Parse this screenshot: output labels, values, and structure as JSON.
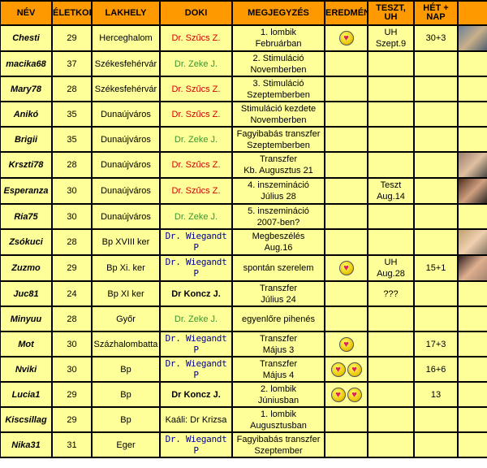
{
  "headers": [
    "NÉV",
    "ÉLETKOR",
    "LAKHELY",
    "DOKI",
    "MEGJEGYZÉS",
    "EREDMÉNY",
    "TESZT, UH",
    "HÉT + NAP",
    ""
  ],
  "colors": {
    "header": "#ff9900",
    "cell": "#ffff99",
    "doc_szucs": "#cc0000",
    "doc_zeke": "#339933",
    "doc_wiegandt": "#000099"
  },
  "rows": [
    {
      "name": "Chesti",
      "age": "29",
      "city": "Herceghalom",
      "doctor": "Dr. Szűcs Z.",
      "doc_style": "red",
      "note1": "1. lombik",
      "note2": "Februárban",
      "hearts": 1,
      "test1": "UH",
      "test2": "Szept.9",
      "week": "30+3",
      "photo": true
    },
    {
      "name": "macika68",
      "age": "37",
      "city": "Székesfehérvár",
      "doctor": "Dr. Zeke J.",
      "doc_style": "green",
      "note1": "2. Stimuláció",
      "note2": "Novemberben",
      "hearts": 0,
      "test1": "",
      "test2": "",
      "week": "",
      "photo": false
    },
    {
      "name": "Mary78",
      "age": "28",
      "city": "Székesfehérvár",
      "doctor": "Dr. Szűcs Z.",
      "doc_style": "red",
      "note1": "3. Stimuláció",
      "note2": "Szeptemberben",
      "hearts": 0,
      "test1": "",
      "test2": "",
      "week": "",
      "photo": false
    },
    {
      "name": "Anikó",
      "age": "35",
      "city": "Dunaújváros",
      "doctor": "Dr. Szűcs Z.",
      "doc_style": "red",
      "note1": "Stimuláció kezdete",
      "note2": "Novemberben",
      "hearts": 0,
      "test1": "",
      "test2": "",
      "week": "",
      "photo": false
    },
    {
      "name": "Brigii",
      "age": "35",
      "city": "Dunaújváros",
      "doctor": "Dr. Zeke J.",
      "doc_style": "green",
      "note1": "Fagyibabás transzfer",
      "note2": "Szeptemberben",
      "hearts": 0,
      "test1": "",
      "test2": "",
      "week": "",
      "photo": false
    },
    {
      "name": "Krszti78",
      "age": "28",
      "city": "Dunaújváros",
      "doctor": "Dr. Szűcs Z.",
      "doc_style": "red",
      "note1": "Transzfer",
      "note2": "Kb. Augusztus 21",
      "hearts": 0,
      "test1": "",
      "test2": "",
      "week": "",
      "photo": true
    },
    {
      "name": "Esperanza",
      "age": "30",
      "city": "Dunaújváros",
      "doctor": "Dr. Szűcs Z.",
      "doc_style": "red",
      "note1": "4. inszemináció",
      "note2": "Július 28",
      "hearts": 0,
      "test1": "Teszt",
      "test2": "Aug.14",
      "week": "",
      "photo": true
    },
    {
      "name": "Ria75",
      "age": "30",
      "city": "Dunaújváros",
      "doctor": "Dr. Zeke J.",
      "doc_style": "green",
      "note1": "5. inszemináció",
      "note2": "2007-ben?",
      "hearts": 0,
      "test1": "",
      "test2": "",
      "week": "",
      "photo": false
    },
    {
      "name": "Zsókuci",
      "age": "28",
      "city": "Bp XVIII ker",
      "doctor": "Dr. Wiegandt P",
      "doc_style": "blue",
      "note1": "Megbeszélés",
      "note2": "Aug.16",
      "hearts": 0,
      "test1": "",
      "test2": "",
      "week": "",
      "photo": true
    },
    {
      "name": "Zuzmo",
      "age": "29",
      "city": "Bp Xi. ker",
      "doctor": "Dr. Wiegandt P",
      "doc_style": "blue",
      "note1": "spontán szerelem",
      "note2": "",
      "hearts": 1,
      "test1": "UH",
      "test2": "Aug.28",
      "week": "15+1",
      "photo": true
    },
    {
      "name": "Juc81",
      "age": "24",
      "city": "Bp XI ker",
      "doctor": "Dr Koncz J.",
      "doc_style": "bold",
      "note1": "Transzfer",
      "note2": "Július 24",
      "hearts": 0,
      "test1": "???",
      "test2": "",
      "week": "",
      "photo": false
    },
    {
      "name": "Minyuu",
      "age": "28",
      "city": "Győr",
      "doctor": "Dr. Zeke J.",
      "doc_style": "green",
      "note1": "egyenlőre pihenés",
      "note2": "",
      "hearts": 0,
      "test1": "",
      "test2": "",
      "week": "",
      "photo": false
    },
    {
      "name": "Mot",
      "age": "30",
      "city": "Százhalombatta",
      "doctor": "Dr. Wiegandt P",
      "doc_style": "blue",
      "note1": "Transzfer",
      "note2": "Május 3",
      "hearts": 1,
      "test1": "",
      "test2": "",
      "week": "17+3",
      "photo": false
    },
    {
      "name": "Nviki",
      "age": "30",
      "city": "Bp",
      "doctor": "Dr. Wiegandt P",
      "doc_style": "blue",
      "note1": "Transzfer",
      "note2": "Május 4",
      "hearts": 2,
      "test1": "",
      "test2": "",
      "week": "16+6",
      "photo": false
    },
    {
      "name": "Lucia1",
      "age": "29",
      "city": "Bp",
      "doctor": "Dr Koncz J.",
      "doc_style": "bold",
      "note1": "2. lombik",
      "note2": "Júniusban",
      "hearts": 2,
      "test1": "",
      "test2": "",
      "week": "13",
      "photo": false
    },
    {
      "name": "Kiscsillag",
      "age": "29",
      "city": "Bp",
      "doctor": "Kaáli: Dr Krizsa",
      "doc_style": "plain",
      "note1": "1. lombik",
      "note2": "Augusztusban",
      "hearts": 0,
      "test1": "",
      "test2": "",
      "week": "",
      "photo": false
    },
    {
      "name": "Nika31",
      "age": "31",
      "city": "Eger",
      "doctor": "Dr. Wiegandt P",
      "doc_style": "blue",
      "note1": "Fagyibabás transzfer",
      "note2": "Szeptember",
      "hearts": 0,
      "test1": "",
      "test2": "",
      "week": "",
      "photo": false
    }
  ]
}
